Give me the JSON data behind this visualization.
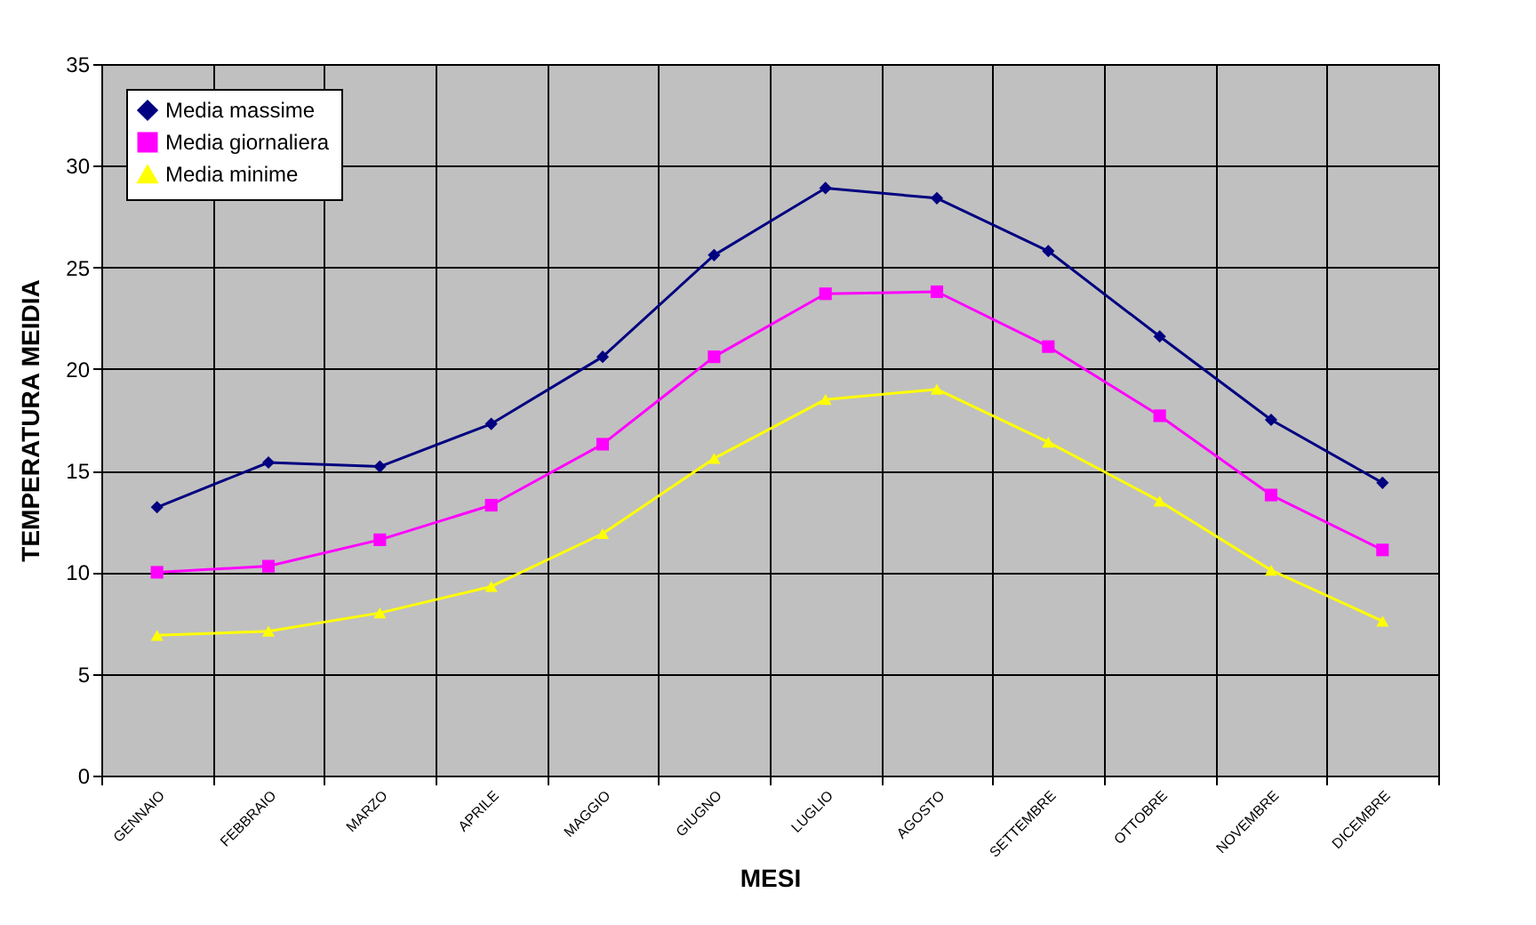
{
  "chart_data": {
    "type": "line",
    "xlabel": "MESI",
    "ylabel": "TEMPERATURA MEIDIA",
    "categories": [
      "GENNAIO",
      "FEBBRAIO",
      "MARZO",
      "APRILE",
      "MAGGIO",
      "GIUGNO",
      "LUGLIO",
      "AGOSTO",
      "SETTEMBRE",
      "OTTOBRE",
      "NOVEMBRE",
      "DICEMBRE"
    ],
    "series": [
      {
        "name": "Media massime",
        "color": "#000080",
        "marker": "diamond",
        "values": [
          13.2,
          15.4,
          15.2,
          17.3,
          20.6,
          25.6,
          28.9,
          28.4,
          25.8,
          21.6,
          17.5,
          14.4
        ]
      },
      {
        "name": "Media giornaliera",
        "color": "#ff00ff",
        "marker": "square",
        "values": [
          10.0,
          10.3,
          11.6,
          13.3,
          16.3,
          20.6,
          23.7,
          23.8,
          21.1,
          17.7,
          13.8,
          11.1
        ]
      },
      {
        "name": "Media minime",
        "color": "#ffff00",
        "marker": "triangle",
        "values": [
          6.9,
          7.1,
          8.0,
          9.3,
          11.9,
          15.6,
          18.5,
          19.0,
          16.4,
          13.5,
          10.1,
          7.6
        ]
      }
    ],
    "ylim": [
      0,
      35
    ],
    "yticks": [
      0,
      5,
      10,
      15,
      20,
      25,
      30,
      35
    ],
    "grid": true,
    "legend": "top left",
    "line_style": "solid"
  }
}
